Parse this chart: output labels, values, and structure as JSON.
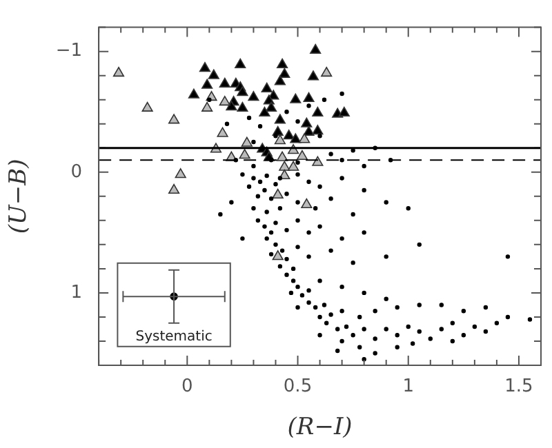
{
  "chart_data": {
    "type": "scatter",
    "xlabel": "(R−I)",
    "ylabel": "(U−B)",
    "xlim": [
      -0.4,
      1.6
    ],
    "ylim": [
      1.6,
      -1.2
    ],
    "xticks": [
      {
        "value": -0.4,
        "label": null
      },
      {
        "value": -0.3,
        "label": null
      },
      {
        "value": -0.2,
        "label": null
      },
      {
        "value": -0.1,
        "label": null
      },
      0,
      {
        "value": 0.1,
        "label": null
      },
      {
        "value": 0.2,
        "label": null
      },
      {
        "value": 0.3,
        "label": null
      },
      {
        "value": 0.4,
        "label": null
      },
      0.5,
      {
        "value": 0.6,
        "label": null
      },
      {
        "value": 0.7,
        "label": null
      },
      {
        "value": 0.8,
        "label": null
      },
      {
        "value": 0.9,
        "label": null
      },
      1,
      {
        "value": 1.1,
        "label": null
      },
      {
        "value": 1.2,
        "label": null
      },
      {
        "value": 1.3,
        "label": null
      },
      {
        "value": 1.4,
        "label": null
      },
      1.5,
      {
        "value": 1.6,
        "label": null
      }
    ],
    "yticks": [
      {
        "value": -1.2,
        "label": null
      },
      {
        "value": -1,
        "label": "−1"
      },
      {
        "value": -0.8,
        "label": null
      },
      {
        "value": -0.6,
        "label": null
      },
      {
        "value": -0.4,
        "label": null
      },
      {
        "value": -0.2,
        "label": null
      },
      0,
      {
        "value": 0.2,
        "label": null
      },
      {
        "value": 0.4,
        "label": null
      },
      {
        "value": 0.6,
        "label": null
      },
      {
        "value": 0.8,
        "label": null
      },
      1,
      {
        "value": 1.2,
        "label": null
      },
      {
        "value": 1.4,
        "label": null
      },
      {
        "value": 1.6,
        "label": null
      }
    ],
    "grid": false,
    "legend": false,
    "ref_lines": [
      {
        "axis": "y",
        "value": -0.2,
        "line_style": "solid",
        "color": "#000000"
      },
      {
        "axis": "y",
        "value": -0.1,
        "line_style": "dashed",
        "color": "#000000"
      }
    ],
    "series": [
      {
        "color": "#000000",
        "marker": "circle",
        "x": [
          0.28,
          0.33,
          0.45,
          0.55,
          0.62,
          0.7,
          0.5,
          0.4,
          0.3,
          0.6,
          0.65,
          0.75,
          0.85,
          0.22,
          0.3,
          0.38,
          0.5,
          0.7,
          0.8,
          0.92,
          0.1,
          0.18,
          0.25,
          0.3,
          0.33,
          0.36,
          0.4,
          0.28,
          0.35,
          0.42,
          0.5,
          0.55,
          0.6,
          0.7,
          0.8,
          0.9,
          0.32,
          0.38,
          0.45,
          0.5,
          0.58,
          0.65,
          0.3,
          0.36,
          0.42,
          0.2,
          0.15,
          0.75,
          1.0,
          0.32,
          0.35,
          0.38,
          0.4,
          0.45,
          0.5,
          0.55,
          0.6,
          0.7,
          0.8,
          0.36,
          0.4,
          0.43,
          0.38,
          0.45,
          0.5,
          0.55,
          0.65,
          0.75,
          0.9,
          1.05,
          0.42,
          0.48,
          0.25,
          1.45,
          0.45,
          0.48,
          0.5,
          0.47,
          0.52,
          0.55,
          0.6,
          0.7,
          0.8,
          0.9,
          0.55,
          0.58,
          0.62,
          0.65,
          0.6,
          0.7,
          0.78,
          0.85,
          0.95,
          1.05,
          1.15,
          1.25,
          1.35,
          0.5,
          0.63,
          0.68,
          0.72,
          0.75,
          0.8,
          0.85,
          0.9,
          0.95,
          1.0,
          1.05,
          1.1,
          1.15,
          1.2,
          1.25,
          1.3,
          1.35,
          1.4,
          1.45,
          1.55,
          0.7,
          0.78,
          0.85,
          0.95,
          1.02,
          0.8,
          0.68,
          1.2,
          0.6
        ],
        "values": [
          -0.45,
          -0.38,
          -0.5,
          -0.55,
          -0.6,
          -0.65,
          -0.42,
          -0.3,
          -0.25,
          -0.3,
          -0.15,
          -0.18,
          -0.2,
          -0.1,
          -0.05,
          -0.1,
          -0.08,
          -0.1,
          -0.05,
          -0.1,
          -0.6,
          -0.4,
          0.02,
          0.05,
          0.08,
          0.03,
          0.1,
          0.12,
          0.15,
          0.05,
          0.02,
          0.08,
          0.12,
          0.05,
          0.15,
          0.25,
          0.2,
          0.22,
          0.18,
          0.25,
          0.3,
          0.22,
          0.3,
          0.33,
          0.3,
          0.25,
          0.35,
          0.35,
          0.3,
          0.4,
          0.45,
          0.5,
          0.42,
          0.48,
          0.4,
          0.5,
          0.45,
          0.55,
          0.5,
          0.55,
          0.6,
          0.65,
          0.68,
          0.72,
          0.62,
          0.7,
          0.65,
          0.75,
          0.7,
          0.6,
          0.78,
          0.8,
          0.55,
          0.7,
          0.85,
          0.9,
          0.95,
          1.0,
          1.02,
          0.98,
          0.9,
          0.95,
          1.0,
          1.05,
          1.08,
          1.12,
          1.1,
          1.18,
          1.2,
          1.15,
          1.2,
          1.15,
          1.12,
          1.1,
          1.1,
          1.15,
          1.12,
          1.12,
          1.25,
          1.3,
          1.28,
          1.35,
          1.3,
          1.38,
          1.3,
          1.35,
          1.28,
          1.32,
          1.38,
          1.3,
          1.25,
          1.35,
          1.28,
          1.32,
          1.25,
          1.2,
          1.22,
          1.4,
          1.45,
          1.5,
          1.45,
          1.42,
          1.55,
          1.48,
          1.4,
          1.35
        ]
      },
      {
        "color": "#bbbbbb",
        "marker": "triangle",
        "x": [
          -0.31,
          0.63,
          -0.18,
          -0.06,
          0.11,
          0.09,
          0.17,
          0.16,
          0.13,
          0.27,
          0.42,
          0.53,
          0.48,
          0.2,
          0.26,
          0.43,
          0.52,
          0.59,
          0.44,
          0.48,
          -0.03,
          -0.06,
          0.44,
          0.41,
          0.54,
          0.41
        ],
        "values": [
          -0.82,
          -0.82,
          -0.53,
          -0.43,
          -0.62,
          -0.53,
          -0.58,
          -0.32,
          -0.19,
          -0.24,
          -0.26,
          -0.27,
          -0.18,
          -0.12,
          -0.14,
          -0.12,
          -0.13,
          -0.08,
          -0.04,
          -0.04,
          0.02,
          0.15,
          0.03,
          0.19,
          0.27,
          0.7
        ]
      },
      {
        "color": "#000000",
        "marker": "triangle",
        "x": [
          0.58,
          0.08,
          0.24,
          0.43,
          0.44,
          0.12,
          0.57,
          0.42,
          0.09,
          0.17,
          0.22,
          0.24,
          0.25,
          0.36,
          0.03,
          0.3,
          0.39,
          0.37,
          0.49,
          0.55,
          0.21,
          0.2,
          0.25,
          0.38,
          0.35,
          0.59,
          0.68,
          0.71,
          0.42,
          0.54,
          0.55,
          0.59,
          0.41,
          0.46,
          0.49,
          0.34,
          0.36,
          0.37
        ],
        "values": [
          -1.01,
          -0.86,
          -0.89,
          -0.89,
          -0.81,
          -0.8,
          -0.79,
          -0.75,
          -0.72,
          -0.73,
          -0.73,
          -0.7,
          -0.66,
          -0.69,
          -0.64,
          -0.62,
          -0.63,
          -0.59,
          -0.6,
          -0.61,
          -0.58,
          -0.54,
          -0.53,
          -0.53,
          -0.49,
          -0.49,
          -0.48,
          -0.49,
          -0.43,
          -0.4,
          -0.33,
          -0.34,
          -0.33,
          -0.3,
          -0.27,
          -0.19,
          -0.16,
          -0.12
        ]
      },
      {
        "name": "Systematic",
        "color": "#000000",
        "marker": "circle",
        "x": [
          -0.06
        ],
        "values": [
          1.03
        ],
        "errors": [
          0.22
        ],
        "xerrors": [
          0.23
        ]
      }
    ]
  }
}
